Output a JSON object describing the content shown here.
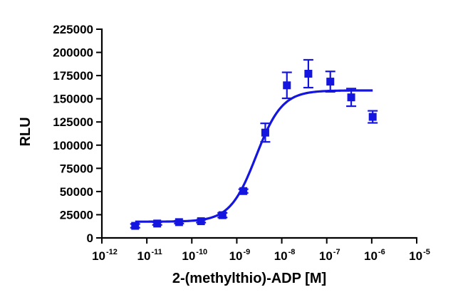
{
  "chart_data": {
    "type": "scatter",
    "xlabel": "2-(methylthio)-ADP [M]",
    "ylabel": "RLU",
    "x_scale": "log10",
    "xlim_exponents": [
      -12,
      -5
    ],
    "x_tick_labels": [
      {
        "base": "10",
        "exp": "-12"
      },
      {
        "base": "10",
        "exp": "-11"
      },
      {
        "base": "10",
        "exp": "-10"
      },
      {
        "base": "10",
        "exp": "-9"
      },
      {
        "base": "10",
        "exp": "-8"
      },
      {
        "base": "10",
        "exp": "-7"
      },
      {
        "base": "10",
        "exp": "-6"
      },
      {
        "base": "10",
        "exp": "-5"
      }
    ],
    "ylim": [
      0,
      225000
    ],
    "y_ticks": [
      0,
      25000,
      50000,
      75000,
      100000,
      125000,
      150000,
      175000,
      200000,
      225000
    ],
    "y_tick_labels": [
      "0",
      "25000",
      "50000",
      "75000",
      "100000",
      "125000",
      "150000",
      "175000",
      "200000",
      "225000"
    ],
    "grid": false,
    "legend": "none",
    "series_color": "#1515e0",
    "points": [
      {
        "x": 5.5e-12,
        "y": 13000,
        "err": 2000
      },
      {
        "x": 1.7e-11,
        "y": 15500,
        "err": 1500
      },
      {
        "x": 5.2e-11,
        "y": 17000,
        "err": 1500
      },
      {
        "x": 1.6e-10,
        "y": 18000,
        "err": 1500
      },
      {
        "x": 4.8e-10,
        "y": 24500,
        "err": 2500
      },
      {
        "x": 1.4e-09,
        "y": 50500,
        "err": 2000
      },
      {
        "x": 4.3e-09,
        "y": 113500,
        "err": 10000
      },
      {
        "x": 1.3e-08,
        "y": 164500,
        "err": 14000
      },
      {
        "x": 3.9e-08,
        "y": 177000,
        "err": 15000
      },
      {
        "x": 1.2e-07,
        "y": 168500,
        "err": 11000
      },
      {
        "x": 3.5e-07,
        "y": 151500,
        "err": 9500
      },
      {
        "x": 1.05e-06,
        "y": 130500,
        "err": 6500
      }
    ],
    "fit": {
      "model": "sigmoidal dose-response",
      "bottom": 17500,
      "top": 159000,
      "log_ec50": -8.57,
      "hill": 1.5,
      "x_range": [
        5.5e-12,
        1.05e-06
      ]
    }
  }
}
